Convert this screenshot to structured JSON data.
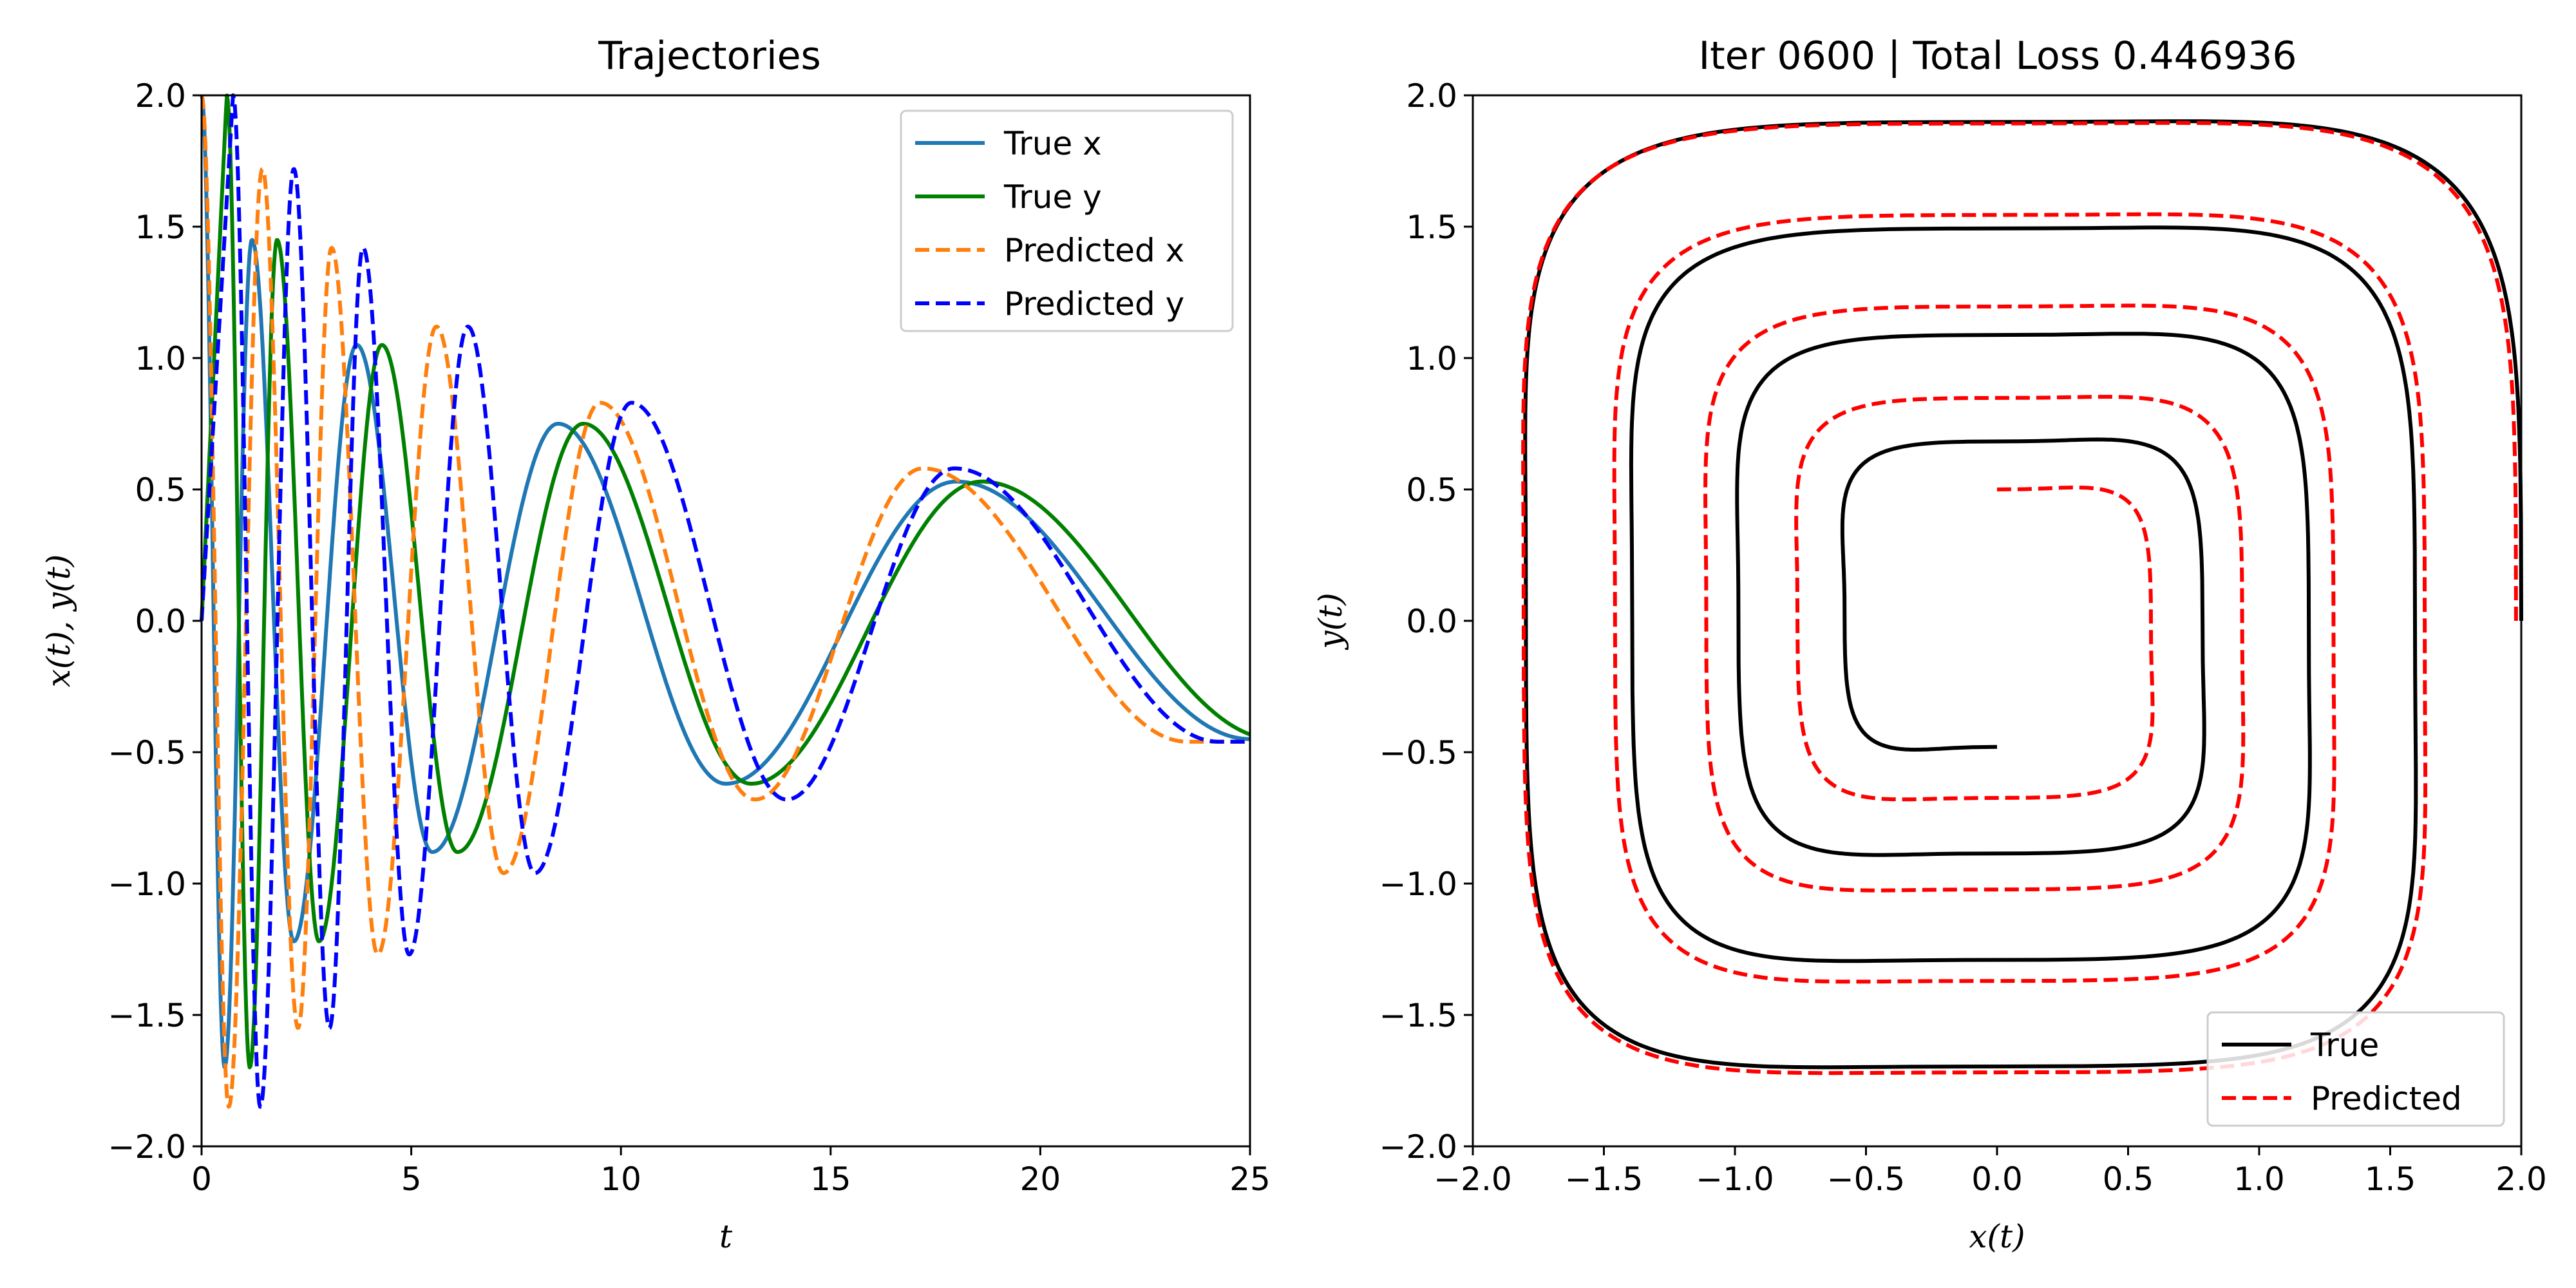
{
  "chart_data": [
    {
      "type": "line",
      "title": "Trajectories",
      "xlabel": "t",
      "ylabel": "x(t), y(t)",
      "xlim": [
        0,
        25
      ],
      "ylim": [
        -2.0,
        2.0
      ],
      "xticks": [
        "0",
        "5",
        "10",
        "15",
        "20",
        "25"
      ],
      "yticks": [
        "−2.0",
        "−1.5",
        "−1.0",
        "−0.5",
        "0.0",
        "0.5",
        "1.0",
        "1.5",
        "2.0"
      ],
      "grid": false,
      "legend_position": "top-right",
      "series": [
        {
          "name": "True x",
          "color": "#1f77b4",
          "style": "solid",
          "role": "true_x"
        },
        {
          "name": "True y",
          "color": "#008000",
          "style": "solid",
          "role": "true_y"
        },
        {
          "name": "Predicted x",
          "color": "#ff7f0e",
          "style": "dashed",
          "role": "pred_x"
        },
        {
          "name": "Predicted y",
          "color": "#0000ff",
          "style": "dashed",
          "role": "pred_y"
        }
      ],
      "true_extrema": [
        [
          0.0,
          2.0
        ],
        [
          0.55,
          -1.7
        ],
        [
          1.2,
          1.45
        ],
        [
          2.2,
          -1.22
        ],
        [
          3.7,
          1.05
        ],
        [
          5.5,
          -0.88
        ],
        [
          8.5,
          0.75
        ],
        [
          12.5,
          -0.62
        ],
        [
          18.0,
          0.53
        ],
        [
          25.0,
          -0.45
        ]
      ],
      "pred_extrema": [
        [
          0.0,
          2.0
        ],
        [
          0.65,
          -1.85
        ],
        [
          1.45,
          1.72
        ],
        [
          2.3,
          -1.55
        ],
        [
          3.1,
          1.42
        ],
        [
          4.2,
          -1.27
        ],
        [
          5.6,
          1.12
        ],
        [
          7.2,
          -0.96
        ],
        [
          9.5,
          0.83
        ],
        [
          13.2,
          -0.68
        ],
        [
          17.2,
          0.58
        ],
        [
          23.5,
          -0.46
        ],
        [
          25.0,
          -0.46
        ]
      ],
      "y_lag_true": 0.6,
      "y_lag_pred": 0.75
    },
    {
      "type": "line",
      "title": "Iter 0600 | Total Loss 0.446936",
      "xlabel": "x(t)",
      "ylabel": "y(t)",
      "xlim": [
        -2.0,
        2.0
      ],
      "ylim": [
        -2.0,
        2.0
      ],
      "xticks": [
        "−2.0",
        "−1.5",
        "−1.0",
        "−0.5",
        "0.0",
        "0.5",
        "1.0",
        "1.5",
        "2.0"
      ],
      "yticks": [
        "−2.0",
        "−1.5",
        "−1.0",
        "−0.5",
        "0.0",
        "0.5",
        "1.0",
        "1.5",
        "2.0"
      ],
      "grid": false,
      "legend_position": "lower-right",
      "series": [
        {
          "name": "True",
          "color": "#000000",
          "style": "solid",
          "role": "true"
        },
        {
          "name": "Predicted",
          "color": "#ff0000",
          "style": "dashed",
          "role": "pred"
        }
      ],
      "true_spiral": {
        "r_start": 2.0,
        "r_end": 0.48,
        "turns": 3.75
      },
      "pred_spiral": {
        "r_start": 1.98,
        "r_end": 0.5,
        "turns": 4.25
      }
    }
  ]
}
